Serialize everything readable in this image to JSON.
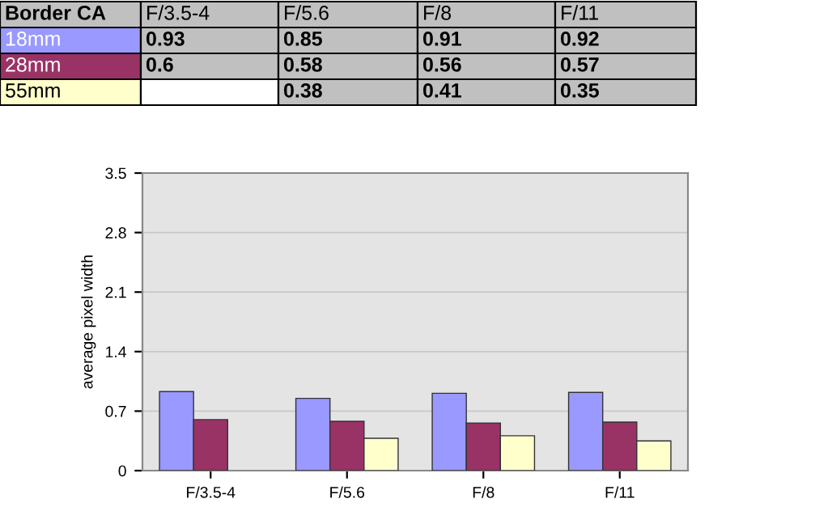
{
  "chart_data": {
    "type": "bar",
    "title": "Border CA",
    "ylabel": "average pixel width",
    "categories": [
      "F/3.5-4",
      "F/5.6",
      "F/8",
      "F/11"
    ],
    "series": [
      {
        "name": "18mm",
        "color": "#9999ff",
        "values": [
          0.93,
          0.85,
          0.91,
          0.92
        ]
      },
      {
        "name": "28mm",
        "color": "#993366",
        "values": [
          0.6,
          0.58,
          0.56,
          0.57
        ]
      },
      {
        "name": "55mm",
        "color": "#ffffcc",
        "values": [
          null,
          0.38,
          0.41,
          0.35
        ]
      }
    ],
    "ylim": [
      0,
      3.5
    ],
    "yticks": [
      0,
      0.7,
      1.4,
      2.1,
      2.8,
      3.5
    ],
    "grid": "y",
    "legend": "top left",
    "data_labels": true
  }
}
